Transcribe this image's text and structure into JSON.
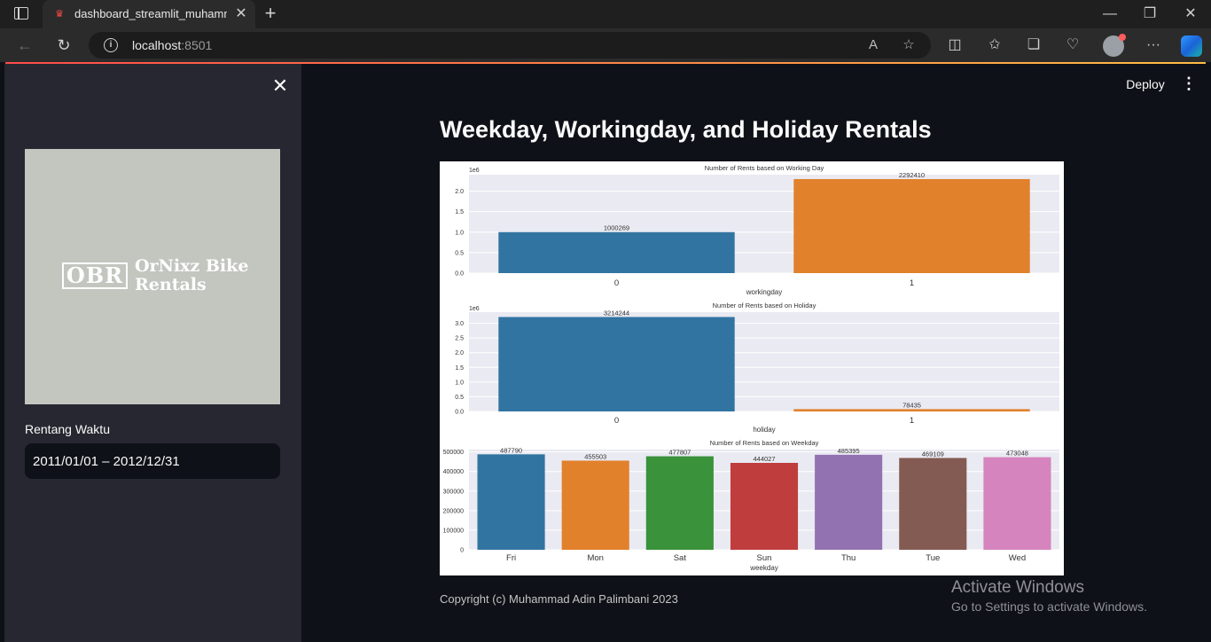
{
  "browser": {
    "tab_title": "dashboard_streamlit_muhammad",
    "url_host": "localhost",
    "url_port": ":8501"
  },
  "sidebar": {
    "logo": {
      "mark": "OBR",
      "text_line1": "OrNixz Bike",
      "text_line2": "Rentals",
      "background": "#c3c5bf"
    },
    "date_range_label": "Rentang Waktu",
    "date_range_value": "2011/01/01 – 2012/12/31"
  },
  "header": {
    "deploy_label": "Deploy"
  },
  "main": {
    "title": "Weekday, Workingday, and Holiday Rentals",
    "copyright": "Copyright (c) Muhammad Adin Palimbani 2023"
  },
  "watermark": {
    "title": "Activate Windows",
    "subtitle": "Go to Settings to activate Windows."
  },
  "colors": {
    "plot_bg": "#eaeaf2",
    "blue": "#3274a1",
    "orange": "#e1812c",
    "green": "#3a923a",
    "red": "#c03d3e",
    "purple": "#9372b2",
    "brown": "#845b53",
    "pink": "#d684bd"
  },
  "chart_data": [
    {
      "type": "bar",
      "title": "Number of Rents based on Working Day",
      "xlabel": "workingday",
      "ylabel": "",
      "scale_label": "1e6",
      "categories": [
        "0",
        "1"
      ],
      "values": [
        1000269,
        2292410
      ],
      "data_labels": [
        "1000269",
        "2292410"
      ],
      "yticks": [
        0.0,
        0.5,
        1.0,
        1.5,
        2.0
      ],
      "ytick_labels": [
        "0.0",
        "0.5",
        "1.0",
        "1.5",
        "2.0"
      ],
      "ylim": [
        0,
        2400000
      ],
      "bar_colors": [
        "#3274a1",
        "#e1812c"
      ]
    },
    {
      "type": "bar",
      "title": "Number of Rents based on Holiday",
      "xlabel": "holiday",
      "ylabel": "",
      "scale_label": "1e6",
      "categories": [
        "0",
        "1"
      ],
      "values": [
        3214244,
        78435
      ],
      "data_labels": [
        "3214244",
        "78435"
      ],
      "yticks": [
        0.0,
        0.5,
        1.0,
        1.5,
        2.0,
        2.5,
        3.0
      ],
      "ytick_labels": [
        "0.0",
        "0.5",
        "1.0",
        "1.5",
        "2.0",
        "2.5",
        "3.0"
      ],
      "ylim": [
        0,
        3380000
      ],
      "bar_colors": [
        "#3274a1",
        "#e1812c"
      ]
    },
    {
      "type": "bar",
      "title": "Number of Rents based on Weekday",
      "xlabel": "weekday",
      "ylabel": "",
      "scale_label": "",
      "categories": [
        "Fri",
        "Mon",
        "Sat",
        "Sun",
        "Thu",
        "Tue",
        "Wed"
      ],
      "values": [
        487790,
        455503,
        477807,
        444027,
        485395,
        469109,
        473048
      ],
      "data_labels": [
        "487790",
        "455503",
        "477807",
        "444027",
        "485395",
        "469109",
        "473048"
      ],
      "yticks": [
        0,
        100000,
        200000,
        300000,
        400000,
        500000
      ],
      "ytick_labels": [
        "0",
        "100000",
        "200000",
        "300000",
        "400000",
        "500000"
      ],
      "ylim": [
        0,
        512000
      ],
      "bar_colors": [
        "#3274a1",
        "#e1812c",
        "#3a923a",
        "#c03d3e",
        "#9372b2",
        "#845b53",
        "#d684bd"
      ]
    }
  ]
}
